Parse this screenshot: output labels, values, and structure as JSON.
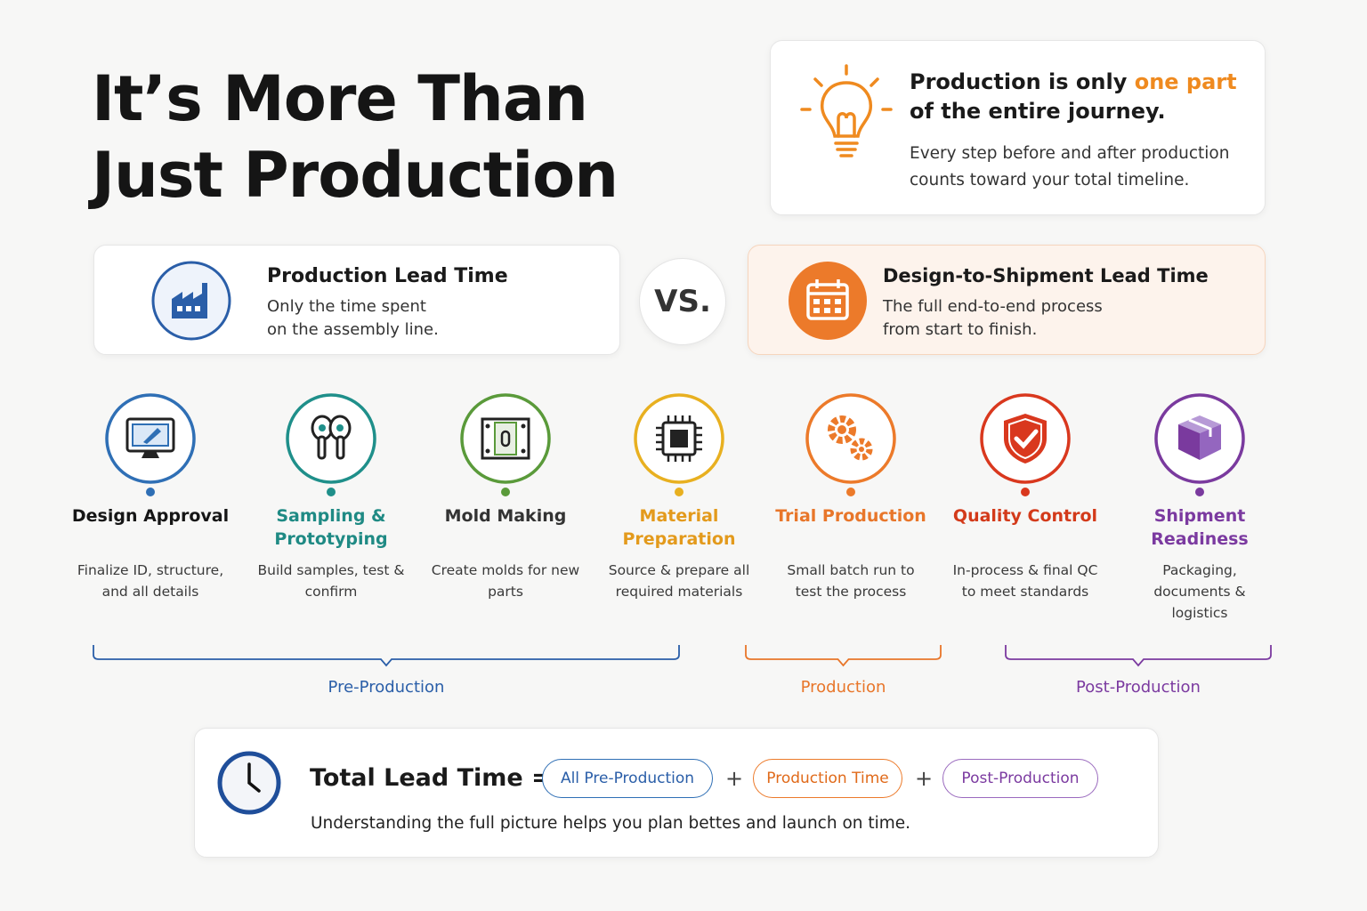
{
  "title": [
    "It’s More Than",
    "Just Production"
  ],
  "callout": {
    "line1": "Production is only",
    "highlight": "one part",
    "line2": "of the entire journey.",
    "body": "Every step before and after production counts toward your total timeline."
  },
  "comparison": {
    "left": {
      "title": "Production Lead Time",
      "description": "Only the time spent on the assembly line."
    },
    "vs": "VS.",
    "right": {
      "title": "Design-to-Shipment Lead Time",
      "description": "The full end-to-end process from start to finish."
    }
  },
  "steps": [
    {
      "title": "Design Approval",
      "description": "Finalize ID, structure, and all details",
      "color": "#2f6fb5",
      "title_color": "#161616"
    },
    {
      "title": "Sampling & Prototyping",
      "description": "Build samples, test & confirm",
      "color": "#1f8f8a",
      "title_color": "#1f8a84"
    },
    {
      "title": "Mold Making",
      "description": "Create molds for new parts",
      "color": "#5a9a3a",
      "title_color": "#333333"
    },
    {
      "title": "Material Preparation",
      "description": "Source & prepare all required materials",
      "color": "#e8b020",
      "title_color": "#e39a1c"
    },
    {
      "title": "Trial Production",
      "description": "Small batch run to test the process",
      "color": "#ec7a2a",
      "title_color": "#e8762a"
    },
    {
      "title": "Quality Control",
      "description": "In-process & final QC to meet standards",
      "color": "#d9381e",
      "title_color": "#d33a1a"
    },
    {
      "title": "Shipment Readiness",
      "description": "Packaging, documents & logistics",
      "color": "#7a3a9e",
      "title_color": "#7b3aa0"
    }
  ],
  "phases": [
    {
      "label": "Pre-Production",
      "color": "#2a5ea8"
    },
    {
      "label": "Production",
      "color": "#e8762a"
    },
    {
      "label": "Post-Production",
      "color": "#7b3aa0"
    }
  ],
  "total": {
    "label": "Total Lead Time =",
    "terms": [
      "All Pre-Production",
      "Production Time",
      "Post-Production"
    ],
    "plus": "+",
    "note": "Understanding the full picture helps you plan bettes and launch on time."
  }
}
